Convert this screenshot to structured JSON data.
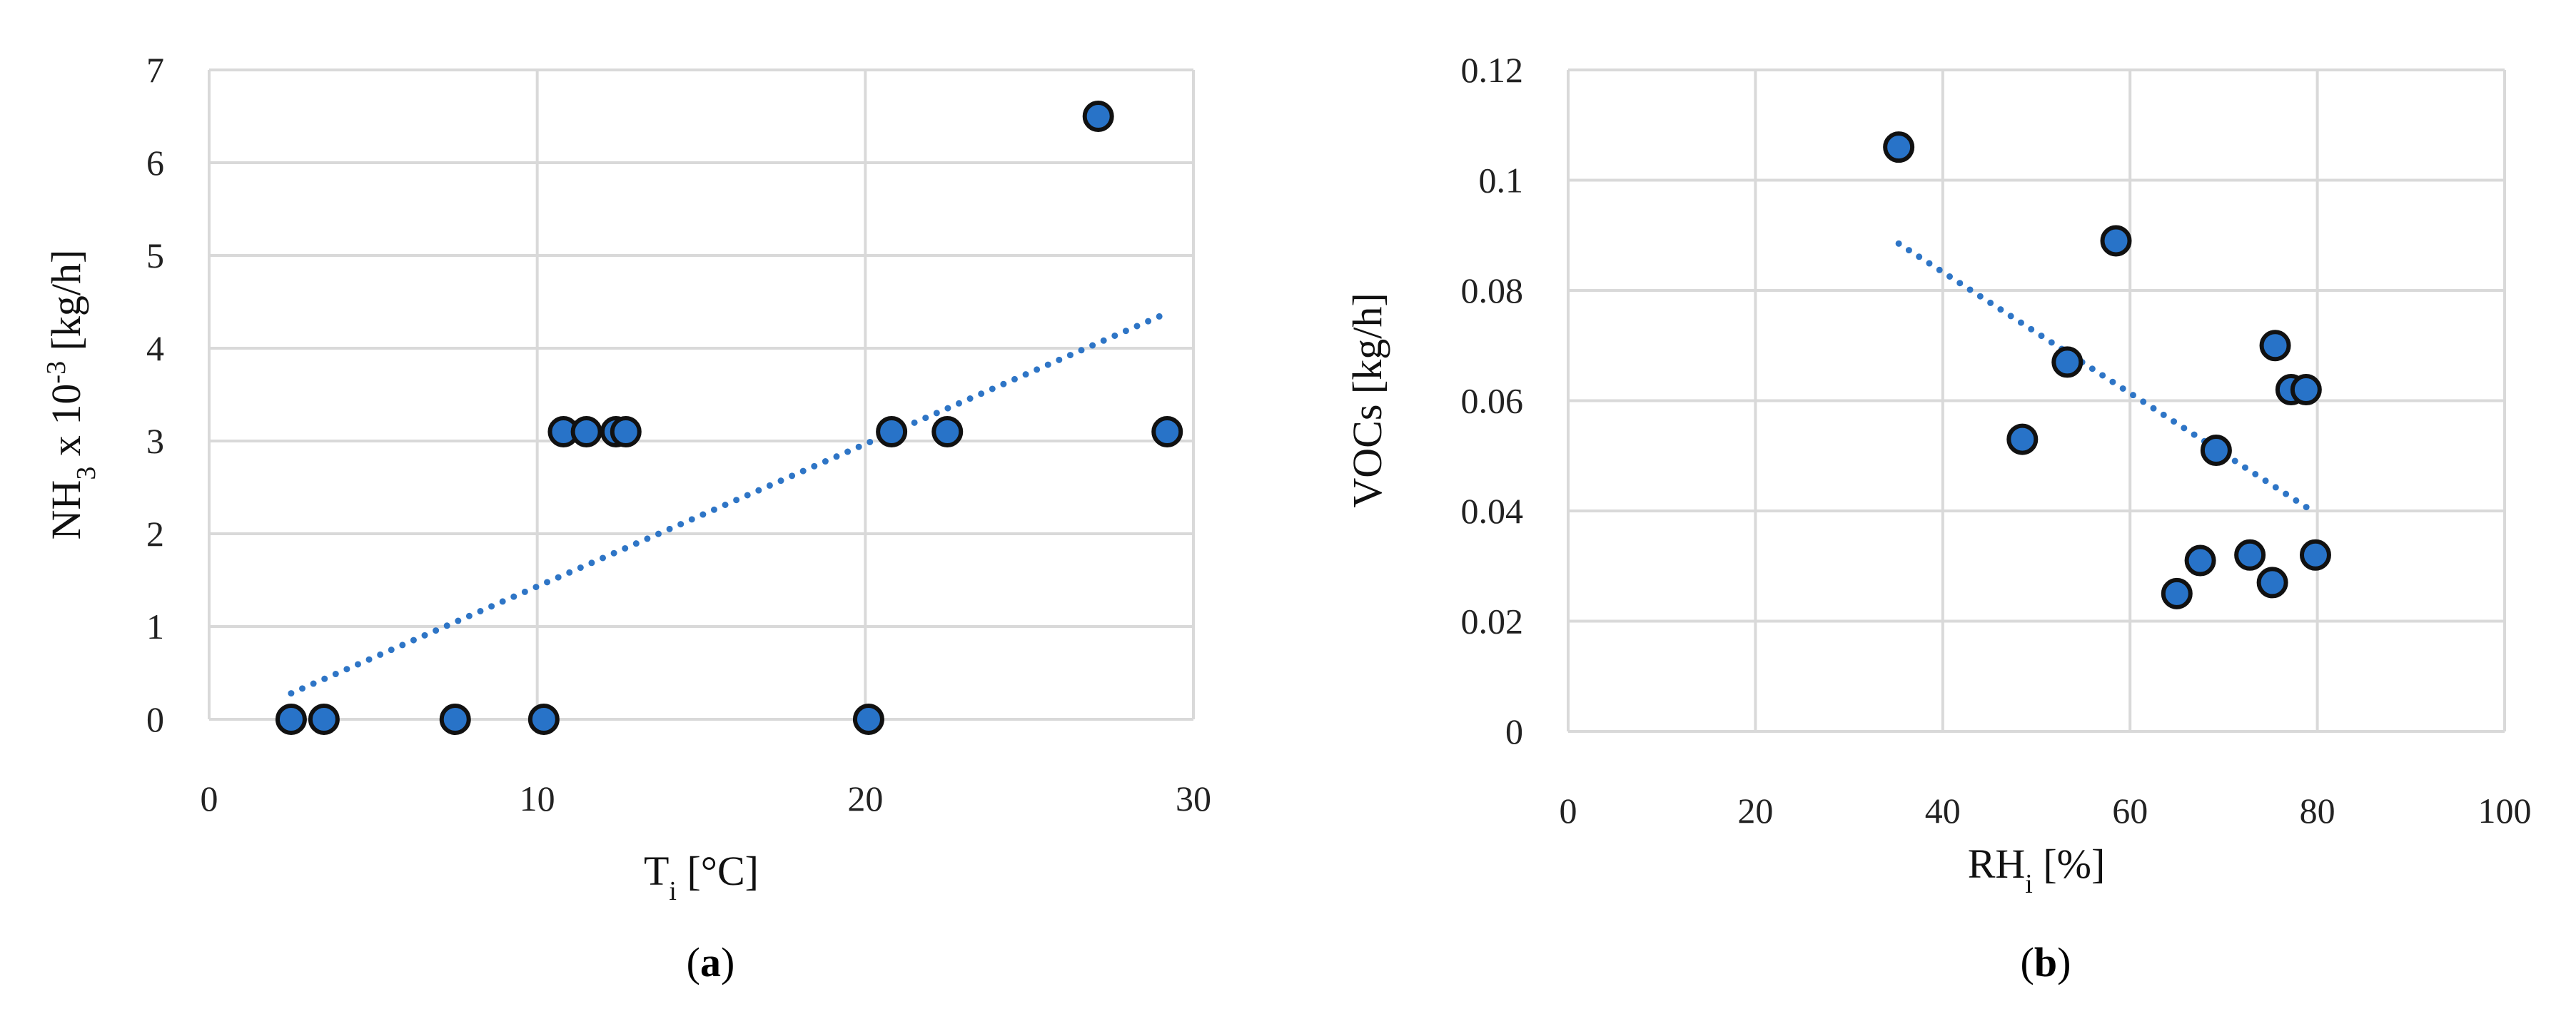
{
  "chart_data": [
    {
      "type": "scatter",
      "panel_label": "a",
      "xlabel": {
        "main": "T",
        "sub": "i",
        "unit": " [°C]"
      },
      "ylabel": {
        "main": "NH",
        "sub": "3",
        "mid": " x 10",
        "sup": "-3",
        "unit": " [kg/h]"
      },
      "xlim": [
        0,
        30
      ],
      "ylim": [
        0,
        7
      ],
      "xticks": [
        0,
        10,
        20,
        30
      ],
      "yticks": [
        0,
        1,
        2,
        3,
        4,
        5,
        6,
        7
      ],
      "xtick_labels": [
        "0",
        "10",
        "20",
        "30"
      ],
      "ytick_labels": [
        "0",
        "1",
        "2",
        "3",
        "4",
        "5",
        "6",
        "7"
      ],
      "grid": true,
      "marker_color": "#2873C8",
      "marker_edge": "#111111",
      "trendline": {
        "style": "dotted",
        "color": "#2E75C6",
        "x": [
          2.5,
          29.2
        ],
        "y": [
          0.28,
          4.38
        ]
      },
      "x": [
        2.5,
        3.5,
        7.5,
        10.2,
        20.1,
        10.8,
        11.5,
        12.4,
        12.7,
        20.8,
        22.5,
        27.1,
        29.2
      ],
      "y": [
        0,
        0,
        0,
        0,
        0,
        3.1,
        3.1,
        3.1,
        3.1,
        3.1,
        3.1,
        6.5,
        3.1
      ]
    },
    {
      "type": "scatter",
      "panel_label": "b",
      "xlabel": {
        "main": "RH",
        "sub": "i",
        "unit": " [%]"
      },
      "ylabel": {
        "main": "VOCs [kg/h]"
      },
      "xlim": [
        0,
        100
      ],
      "ylim": [
        0,
        0.12
      ],
      "xticks": [
        0,
        20,
        40,
        60,
        80,
        100
      ],
      "yticks": [
        0,
        0.02,
        0.04,
        0.06,
        0.08,
        0.1,
        0.12
      ],
      "xtick_labels": [
        "0",
        "20",
        "40",
        "60",
        "80",
        "100"
      ],
      "ytick_labels": [
        "0",
        "0.02",
        "0.04",
        "0.06",
        "0.08",
        "0.1",
        "0.12"
      ],
      "grid": true,
      "marker_color": "#2873C8",
      "marker_edge": "#111111",
      "trendline": {
        "style": "dotted",
        "color": "#2E75C6",
        "x": [
          35.3,
          79
        ],
        "y": [
          0.0885,
          0.0405
        ]
      },
      "x": [
        35.3,
        48.5,
        53.3,
        58.5,
        65,
        67.5,
        69.2,
        72.8,
        75.2,
        75.5,
        77.2,
        78.8,
        79.8
      ],
      "y": [
        0.106,
        0.053,
        0.067,
        0.089,
        0.025,
        0.031,
        0.051,
        0.032,
        0.027,
        0.07,
        0.062,
        0.062,
        0.032
      ]
    }
  ]
}
